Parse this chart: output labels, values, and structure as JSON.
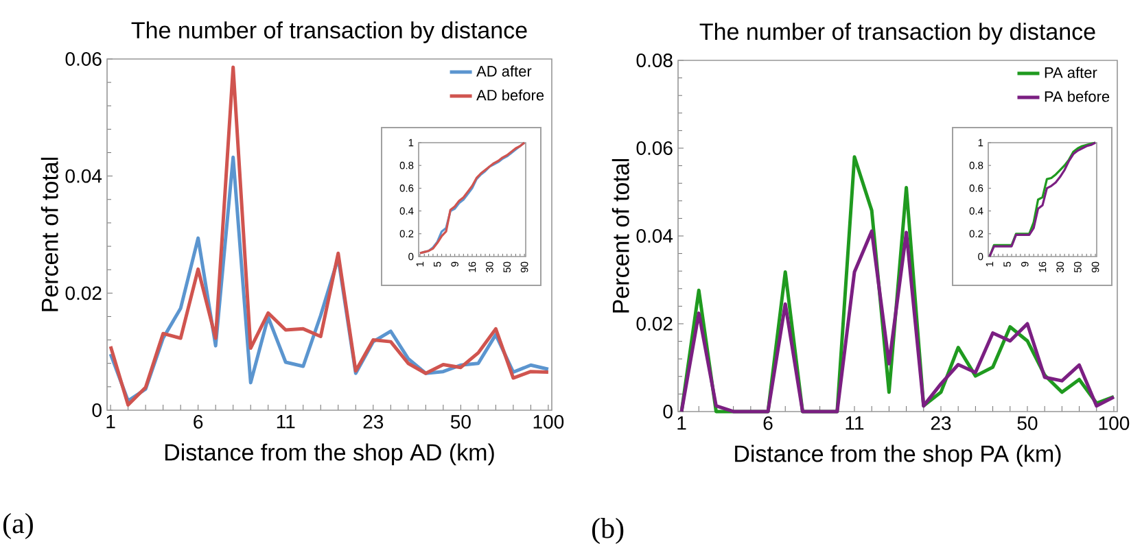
{
  "chart_data": [
    {
      "type": "line",
      "title": "The number of transaction by distance",
      "xlabel": "Distance from the shop AD (km)",
      "ylabel": "Percent of total",
      "categories": [
        "1",
        null,
        null,
        null,
        null,
        "6",
        null,
        null,
        null,
        null,
        "11",
        null,
        null,
        null,
        null,
        "23",
        null,
        null,
        null,
        null,
        "50",
        null,
        null,
        null,
        null,
        "100"
      ],
      "series": [
        {
          "name": "AD after",
          "color": "#5b95cf",
          "values": [
            0.0096,
            0.0016,
            0.0036,
            0.0123,
            0.0174,
            0.0294,
            0.011,
            0.0432,
            0.0047,
            0.0159,
            0.0082,
            0.0075,
            0.0162,
            0.026,
            0.0063,
            0.0117,
            0.0135,
            0.0088,
            0.0063,
            0.0066,
            0.0077,
            0.008,
            0.0129,
            0.0065,
            0.0077,
            0.007
          ]
        },
        {
          "name": "AD before",
          "color": "#d0544f",
          "values": [
            0.0109,
            0.0009,
            0.0039,
            0.0131,
            0.0123,
            0.0241,
            0.0123,
            0.0586,
            0.0106,
            0.0166,
            0.0137,
            0.0139,
            0.0126,
            0.0268,
            0.0067,
            0.012,
            0.0117,
            0.008,
            0.0063,
            0.0078,
            0.0073,
            0.0098,
            0.0139,
            0.0055,
            0.0066,
            0.0065
          ]
        }
      ],
      "ylim": [
        0,
        0.06
      ],
      "yticks": [
        0,
        0.02,
        0.04,
        0.06
      ],
      "legend": "top right",
      "annotations": [
        "(a)"
      ]
    },
    {
      "type": "line",
      "categories": [
        "1",
        null,
        null,
        null,
        "5",
        null,
        null,
        null,
        "9",
        null,
        null,
        null,
        "16",
        null,
        null,
        null,
        "30",
        null,
        null,
        null,
        "50",
        null,
        null,
        null,
        "90"
      ],
      "series": [
        {
          "color": "#5b95cf",
          "values": [
            0.03,
            0.04,
            0.05,
            0.08,
            0.13,
            0.22,
            0.25,
            0.4,
            0.42,
            0.47,
            0.5,
            0.55,
            0.6,
            0.68,
            0.72,
            0.75,
            0.79,
            0.81,
            0.83,
            0.86,
            0.88,
            0.91,
            0.94,
            0.97,
            1.0
          ]
        },
        {
          "color": "#d0544f",
          "values": [
            0.03,
            0.04,
            0.05,
            0.07,
            0.12,
            0.18,
            0.22,
            0.41,
            0.44,
            0.49,
            0.52,
            0.57,
            0.62,
            0.69,
            0.73,
            0.76,
            0.79,
            0.82,
            0.84,
            0.87,
            0.89,
            0.92,
            0.95,
            0.97,
            1.0
          ]
        }
      ],
      "ylim": [
        0,
        1
      ],
      "yticks": [
        0,
        0.2,
        0.4,
        0.6,
        0.8,
        1
      ]
    },
    {
      "type": "line",
      "title": "The number of transaction by distance",
      "xlabel": "Distance from the shop PA (km)",
      "ylabel": "Percent of total",
      "categories": [
        "1",
        null,
        null,
        null,
        null,
        "6",
        null,
        null,
        null,
        null,
        "11",
        null,
        null,
        null,
        null,
        "23",
        null,
        null,
        null,
        null,
        "50",
        null,
        null,
        null,
        null,
        "100"
      ],
      "series": [
        {
          "name": "PA after",
          "color": "#1f9a1f",
          "values": [
            0,
            0.0276,
            0,
            0,
            0,
            0,
            0.0318,
            0,
            0,
            0,
            0.058,
            0.0458,
            0.0044,
            0.051,
            0.0013,
            0.0044,
            0.0146,
            0.0081,
            0.0101,
            0.0193,
            0.0161,
            0.0083,
            0.0044,
            0.0073,
            0.0019,
            0.0034
          ]
        },
        {
          "name": "PA before",
          "color": "#7b1f82",
          "values": [
            0,
            0.0224,
            0.0013,
            0,
            0,
            0,
            0.0245,
            0,
            0,
            0,
            0.0318,
            0.0411,
            0.0109,
            0.0408,
            0.0013,
            0.0063,
            0.0107,
            0.0089,
            0.0179,
            0.0161,
            0.02,
            0.0078,
            0.007,
            0.0106,
            0.0013,
            0.0033
          ]
        }
      ],
      "ylim": [
        0,
        0.08
      ],
      "yticks": [
        0,
        0.02,
        0.04,
        0.06,
        0.08
      ],
      "legend": "top right",
      "annotations": [
        "(b)"
      ]
    },
    {
      "type": "line",
      "categories": [
        "1",
        null,
        null,
        null,
        "5",
        null,
        null,
        null,
        "9",
        null,
        null,
        null,
        "16",
        null,
        null,
        null,
        "30",
        null,
        null,
        null,
        "50",
        null,
        null,
        null,
        "90"
      ],
      "series": [
        {
          "color": "#1f9a1f",
          "values": [
            0,
            0.1,
            0.1,
            0.1,
            0.1,
            0.1,
            0.2,
            0.2,
            0.2,
            0.2,
            0.3,
            0.5,
            0.52,
            0.68,
            0.69,
            0.72,
            0.76,
            0.8,
            0.85,
            0.92,
            0.95,
            0.97,
            0.98,
            0.99,
            1.0
          ]
        },
        {
          "color": "#7b1f82",
          "values": [
            0,
            0.09,
            0.09,
            0.09,
            0.09,
            0.09,
            0.19,
            0.19,
            0.19,
            0.19,
            0.25,
            0.42,
            0.45,
            0.6,
            0.62,
            0.65,
            0.7,
            0.76,
            0.84,
            0.9,
            0.93,
            0.95,
            0.97,
            0.98,
            1.0
          ]
        }
      ],
      "ylim": [
        0,
        1
      ],
      "yticks": [
        0,
        0.2,
        0.4,
        0.6,
        0.8,
        1
      ]
    }
  ]
}
